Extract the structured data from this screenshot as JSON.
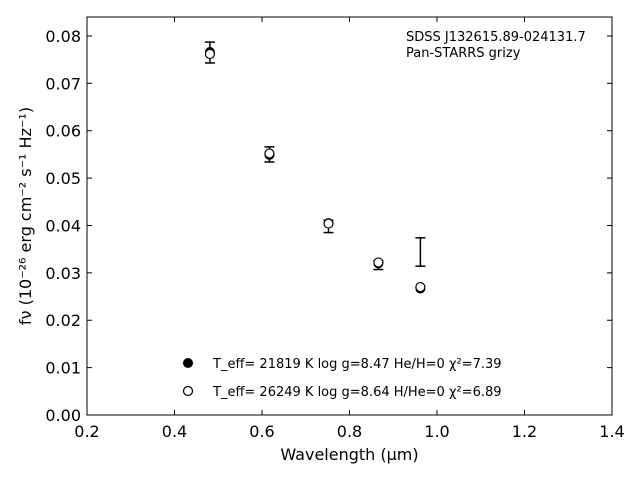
{
  "chart_data": {
    "type": "scatter",
    "xlabel": "Wavelength (μm)",
    "ylabel": "fν (10⁻²⁶ erg cm⁻² s⁻¹ Hz⁻¹)",
    "xlim": [
      0.2,
      1.4
    ],
    "ylim": [
      0.0,
      0.084
    ],
    "x_ticks": [
      0.2,
      0.4,
      0.6,
      0.8,
      1.0,
      1.2,
      1.4
    ],
    "x_tick_labels": [
      "0.2",
      "0.4",
      "0.6",
      "0.8",
      "1.0",
      "1.2",
      "1.4"
    ],
    "y_ticks": [
      0.0,
      0.01,
      0.02,
      0.03,
      0.04,
      0.05,
      0.06,
      0.07,
      0.08
    ],
    "y_tick_labels": [
      "0.00",
      "0.01",
      "0.02",
      "0.03",
      "0.04",
      "0.05",
      "0.06",
      "0.07",
      "0.08"
    ],
    "grid": false,
    "annotation": [
      "SDSS J132615.89-024131.7",
      "Pan-STARRS grizy"
    ],
    "observed": {
      "x": [
        0.481,
        0.617,
        0.752,
        0.866,
        0.962
      ],
      "y": [
        0.0765,
        0.055,
        0.0398,
        0.0316,
        0.0344
      ],
      "yerr": [
        0.0022,
        0.0016,
        0.0013,
        0.0009,
        0.003
      ]
    },
    "series": [
      {
        "name": "T_eff= 21819 K  log g=8.47  He/H=0  χ²=7.39",
        "marker": "filled-circle",
        "x": [
          0.481,
          0.617,
          0.752,
          0.866,
          0.962
        ],
        "y": [
          0.0766,
          0.0549,
          0.0405,
          0.032,
          0.0267
        ]
      },
      {
        "name": "T_eff= 26249 K  log g=8.64  H/He=0  χ²=6.89",
        "marker": "open-circle",
        "x": [
          0.481,
          0.617,
          0.752,
          0.866,
          0.962
        ],
        "y": [
          0.0762,
          0.0552,
          0.0404,
          0.0322,
          0.027
        ]
      }
    ],
    "legend_position": "lower-center"
  }
}
